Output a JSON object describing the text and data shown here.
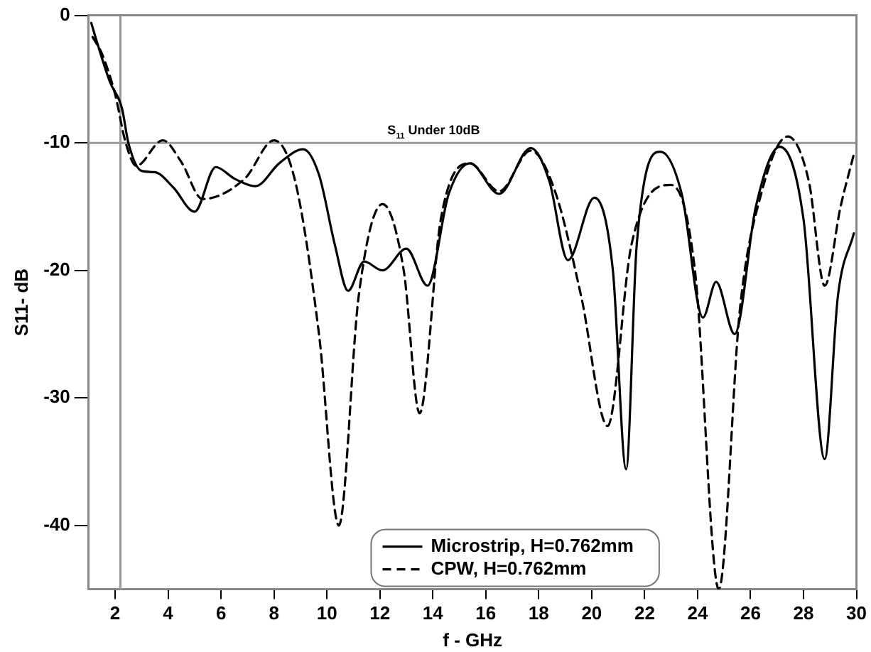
{
  "chart_data": {
    "type": "line",
    "xlabel": "f - GHz",
    "ylabel": "S11- dB",
    "xlim": [
      1,
      30
    ],
    "ylim": [
      -45,
      0
    ],
    "xticks": [
      2,
      4,
      6,
      8,
      10,
      12,
      14,
      16,
      18,
      20,
      22,
      24,
      26,
      28,
      30
    ],
    "yticks": [
      -40,
      -30,
      -20,
      -10,
      0
    ],
    "grid": false,
    "legend": "bottom",
    "marker": "none",
    "ref_lines": [
      {
        "axis": "y",
        "value": -10,
        "label": "S$_{11}$ Under 10dB",
        "color": "#999999"
      },
      {
        "axis": "x",
        "value": 2.2,
        "color": "#999999"
      }
    ],
    "series": [
      {
        "name": "Microstrip, H=0.762mm",
        "color": "#000000",
        "line_style": "solid",
        "x": [
          1.1,
          1.3,
          1.8,
          2.26,
          2.5,
          3.0,
          3.5,
          4.2,
          5.0,
          5.8,
          6.5,
          7.3,
          8.2,
          9.1,
          9.7,
          10.3,
          10.8,
          11.4,
          12.1,
          13.0,
          13.8,
          14.6,
          15.4,
          16.5,
          17.7,
          18.4,
          19.1,
          20.1,
          20.8,
          21.3,
          21.7,
          22.6,
          23.4,
          24.2,
          24.7,
          25.4,
          26.2,
          27.1,
          28.0,
          28.8,
          29.3,
          29.9
        ],
        "values": [
          -0.6,
          -2,
          -5.2,
          -7.3,
          -10,
          -12.2,
          -12.3,
          -13.5,
          -15.4,
          -11.9,
          -12.8,
          -13.4,
          -11.6,
          -10.5,
          -12.5,
          -18,
          -21.6,
          -19.3,
          -20,
          -18.3,
          -21.2,
          -14,
          -11.6,
          -14,
          -10.4,
          -13,
          -19.2,
          -14.3,
          -20,
          -35.6,
          -18,
          -10.7,
          -14,
          -23.7,
          -20.9,
          -25,
          -15,
          -10.3,
          -16,
          -34.8,
          -22,
          -17.1
        ]
      },
      {
        "name": "CPW, H=0.762mm",
        "color": "#000000",
        "line_style": "dashed",
        "x": [
          1.15,
          1.5,
          2.0,
          2.4,
          2.8,
          3.8,
          4.5,
          5.3,
          6.9,
          8.0,
          8.8,
          9.7,
          10.45,
          11.2,
          12.1,
          12.9,
          13.5,
          14.3,
          15.4,
          16.5,
          17.7,
          18.6,
          19.6,
          20.6,
          21.5,
          23.0,
          23.9,
          24.8,
          25.6,
          26.4,
          27.4,
          28.2,
          28.8,
          29.4,
          29.9
        ],
        "values": [
          -1.7,
          -3,
          -6.2,
          -10,
          -11.8,
          -9.8,
          -11.5,
          -14.4,
          -12.8,
          -9.8,
          -13,
          -25,
          -40,
          -22,
          -14.8,
          -20,
          -31.2,
          -16,
          -11.6,
          -13.8,
          -10.6,
          -13.7,
          -22,
          -32.2,
          -18,
          -13.3,
          -20,
          -45,
          -23,
          -14,
          -9.5,
          -13,
          -21.2,
          -15,
          -10.9
        ]
      }
    ]
  }
}
